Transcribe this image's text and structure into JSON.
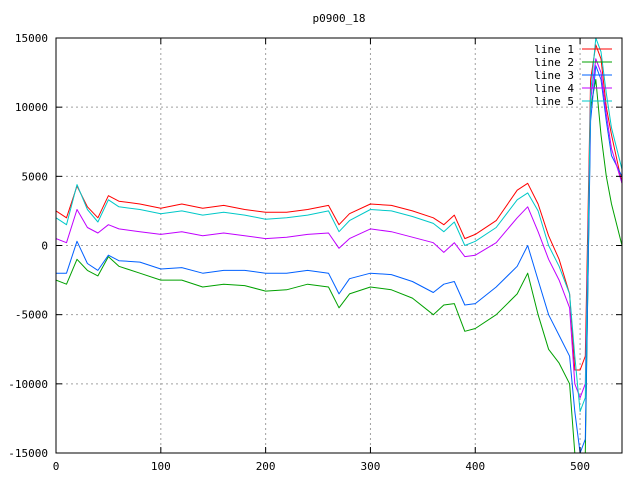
{
  "chart_data": {
    "type": "line",
    "title": "p0900_18",
    "xlabel": "",
    "ylabel": "",
    "xlim": [
      0,
      540
    ],
    "ylim": [
      -15000,
      15000
    ],
    "x_ticks": [
      "0",
      "100",
      "200",
      "300",
      "400",
      "500"
    ],
    "y_ticks": [
      "-15000",
      "-10000",
      "-5000",
      "0",
      "5000",
      "10000",
      "15000"
    ],
    "grid": true,
    "legend_position": "top-right",
    "x": [
      0,
      10,
      20,
      30,
      40,
      50,
      60,
      80,
      100,
      120,
      140,
      160,
      180,
      200,
      220,
      240,
      260,
      270,
      280,
      300,
      320,
      340,
      360,
      370,
      380,
      390,
      400,
      420,
      440,
      450,
      460,
      470,
      480,
      490,
      495,
      500,
      505,
      510,
      515,
      520,
      525,
      530,
      540
    ],
    "series": [
      {
        "name": "line 1",
        "color": "#ff0000",
        "values": [
          2500,
          2000,
          4300,
          2800,
          2000,
          3600,
          3200,
          3000,
          2700,
          3000,
          2700,
          2900,
          2600,
          2400,
          2400,
          2600,
          2900,
          1500,
          2300,
          3000,
          2900,
          2500,
          2000,
          1500,
          2200,
          500,
          800,
          1800,
          4000,
          4500,
          3000,
          700,
          -1000,
          -3500,
          -9000,
          -9000,
          -8000,
          12000,
          14500,
          13500,
          10000,
          8000,
          4500
        ]
      },
      {
        "name": "line 2",
        "color": "#00a000",
        "values": [
          -2500,
          -2800,
          -1000,
          -1800,
          -2200,
          -800,
          -1500,
          -2000,
          -2500,
          -2500,
          -3000,
          -2800,
          -2900,
          -3300,
          -3200,
          -2800,
          -3000,
          -4500,
          -3500,
          -3000,
          -3200,
          -3800,
          -5000,
          -4300,
          -4200,
          -6200,
          -6000,
          -5000,
          -3500,
          -2000,
          -5000,
          -7500,
          -8500,
          -10000,
          -15000,
          -15000,
          -15000,
          10000,
          12000,
          8000,
          5000,
          3000,
          0
        ]
      },
      {
        "name": "line 3",
        "color": "#0060ff",
        "values": [
          -2000,
          -2000,
          300,
          -1300,
          -1800,
          -700,
          -1100,
          -1200,
          -1700,
          -1600,
          -2000,
          -1800,
          -1800,
          -2000,
          -2000,
          -1800,
          -2000,
          -3500,
          -2400,
          -2000,
          -2100,
          -2600,
          -3400,
          -2800,
          -2600,
          -4300,
          -4200,
          -3000,
          -1500,
          0,
          -2500,
          -5000,
          -6500,
          -8000,
          -12000,
          -15000,
          -14000,
          9000,
          13000,
          12000,
          9000,
          6500,
          5000
        ]
      },
      {
        "name": "line 4",
        "color": "#c000ff",
        "values": [
          500,
          200,
          2600,
          1300,
          900,
          1500,
          1200,
          1000,
          800,
          1000,
          700,
          900,
          700,
          500,
          600,
          800,
          900,
          -200,
          500,
          1200,
          1000,
          600,
          200,
          -500,
          200,
          -800,
          -700,
          200,
          2000,
          2800,
          1000,
          -1000,
          -2500,
          -4500,
          -10000,
          -11000,
          -10000,
          10500,
          13500,
          12500,
          9500,
          7000,
          4500
        ]
      },
      {
        "name": "line 5",
        "color": "#00c8c8",
        "values": [
          2000,
          1500,
          4400,
          2600,
          1700,
          3300,
          2800,
          2600,
          2300,
          2500,
          2200,
          2400,
          2200,
          1900,
          2000,
          2200,
          2500,
          1000,
          1800,
          2600,
          2500,
          2100,
          1600,
          1000,
          1700,
          0,
          300,
          1300,
          3300,
          3800,
          2500,
          0,
          -1500,
          -3500,
          -8000,
          -12000,
          -11000,
          11000,
          15000,
          14000,
          11000,
          8500,
          5500
        ]
      }
    ]
  }
}
